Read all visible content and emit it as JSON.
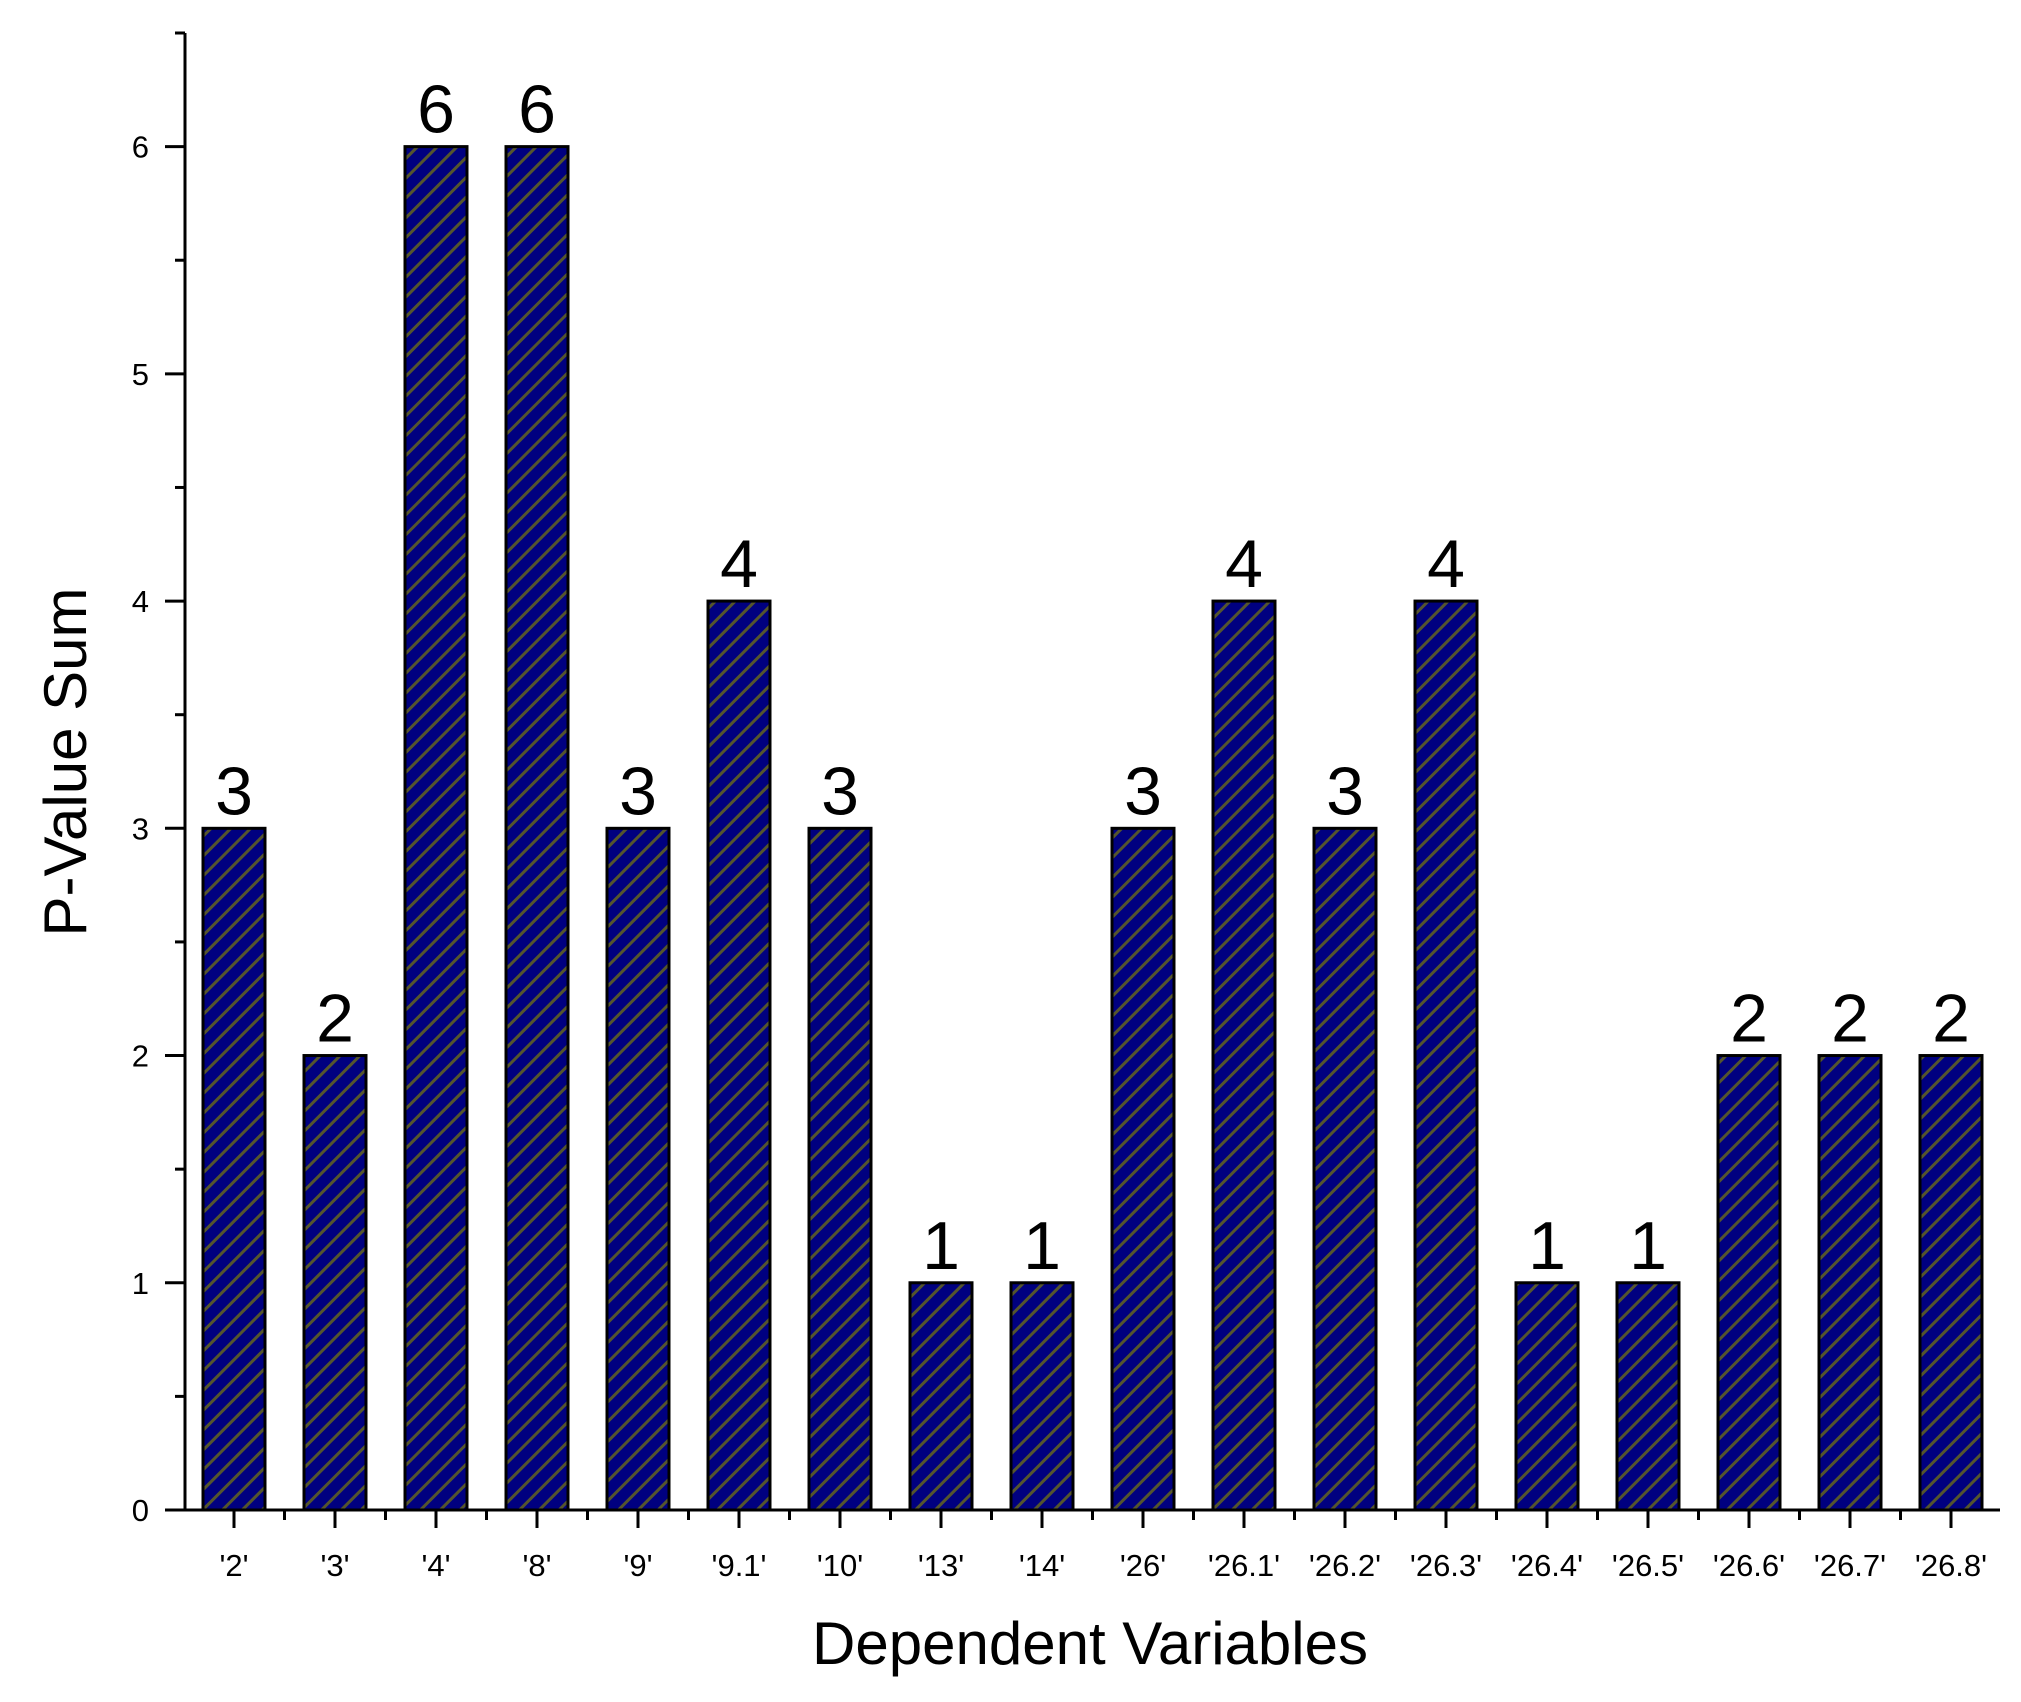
{
  "chart_data": {
    "type": "bar",
    "title": "",
    "xlabel": "Dependent Variables",
    "ylabel": "P-Value Sum",
    "categories": [
      "'2'",
      "'3'",
      "'4'",
      "'8'",
      "'9'",
      "'9.1'",
      "'10'",
      "'13'",
      "'14'",
      "'26'",
      "'26.1'",
      "'26.2'",
      "'26.3'",
      "'26.4'",
      "'26.5'",
      "'26.6'",
      "'26.7'",
      "'26.8'"
    ],
    "values": [
      3,
      2,
      6,
      6,
      3,
      4,
      3,
      1,
      1,
      3,
      4,
      3,
      4,
      1,
      1,
      2,
      2,
      2
    ],
    "data_labels": [
      "3",
      "2",
      "6",
      "6",
      "3",
      "4",
      "3",
      "1",
      "1",
      "3",
      "4",
      "3",
      "4",
      "1",
      "1",
      "2",
      "2",
      "2"
    ],
    "y_ticks": [
      "0",
      "1",
      "2",
      "3",
      "4",
      "5",
      "6"
    ],
    "ylim": [
      0,
      6.5
    ],
    "grid": false,
    "legend": "none",
    "bar_fill": "#000080",
    "bar_hatch": "#55552e",
    "bar_edge": "#000000"
  }
}
